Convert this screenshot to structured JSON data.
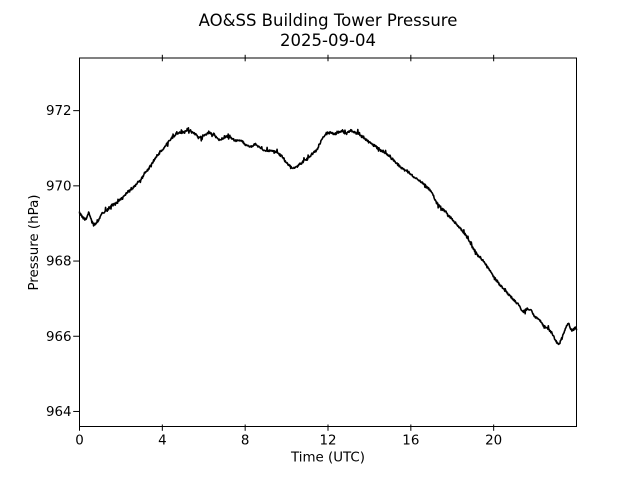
{
  "title": {
    "line1": "AO&SS Building Tower Pressure",
    "line2": "2025-09-04"
  },
  "axes": {
    "xlabel": "Time (UTC)",
    "ylabel": "Pressure (hPa)",
    "xticks": [
      0,
      4,
      8,
      12,
      16,
      20
    ],
    "yticks": [
      964,
      966,
      968,
      970,
      972
    ],
    "xlim": [
      0,
      24
    ],
    "ylim": [
      963.6,
      973.4
    ],
    "grid": false,
    "frame_color": "#000000",
    "background_color": "#ffffff"
  },
  "chart_data": {
    "type": "line",
    "title": "AO&SS Building Tower Pressure",
    "subtitle": "2025-09-04",
    "xlabel": "Time (UTC)",
    "ylabel": "Pressure (hPa)",
    "xlim": [
      0,
      24
    ],
    "ylim": [
      963.6,
      973.4
    ],
    "legend": "none",
    "grid": false,
    "line_color": "#000000",
    "noise_hpa": 0.05,
    "series_name": "tower_pressure_hpa",
    "points": [
      [
        0.0,
        969.3
      ],
      [
        0.15,
        969.15
      ],
      [
        0.3,
        969.1
      ],
      [
        0.45,
        969.3
      ],
      [
        0.6,
        969.05
      ],
      [
        0.75,
        968.98
      ],
      [
        0.9,
        969.05
      ],
      [
        1.05,
        969.25
      ],
      [
        1.2,
        969.3
      ],
      [
        1.4,
        969.4
      ],
      [
        1.6,
        969.5
      ],
      [
        1.8,
        969.55
      ],
      [
        2.0,
        969.65
      ],
      [
        2.25,
        969.78
      ],
      [
        2.5,
        969.9
      ],
      [
        2.75,
        970.05
      ],
      [
        3.0,
        970.2
      ],
      [
        3.25,
        970.4
      ],
      [
        3.5,
        970.6
      ],
      [
        3.75,
        970.8
      ],
      [
        4.0,
        970.95
      ],
      [
        4.25,
        971.15
      ],
      [
        4.5,
        971.3
      ],
      [
        4.75,
        971.4
      ],
      [
        5.0,
        971.42
      ],
      [
        5.25,
        971.48
      ],
      [
        5.5,
        971.42
      ],
      [
        5.75,
        971.28
      ],
      [
        6.0,
        971.33
      ],
      [
        6.25,
        971.42
      ],
      [
        6.5,
        971.35
      ],
      [
        6.75,
        971.22
      ],
      [
        7.0,
        971.28
      ],
      [
        7.25,
        971.32
      ],
      [
        7.5,
        971.2
      ],
      [
        7.75,
        971.22
      ],
      [
        8.0,
        971.1
      ],
      [
        8.25,
        971.05
      ],
      [
        8.5,
        971.1
      ],
      [
        8.75,
        971.0
      ],
      [
        9.0,
        970.92
      ],
      [
        9.25,
        970.95
      ],
      [
        9.5,
        970.9
      ],
      [
        9.75,
        970.8
      ],
      [
        10.0,
        970.62
      ],
      [
        10.2,
        970.5
      ],
      [
        10.35,
        970.45
      ],
      [
        10.5,
        970.52
      ],
      [
        10.75,
        970.62
      ],
      [
        11.0,
        970.72
      ],
      [
        11.25,
        970.85
      ],
      [
        11.5,
        971.0
      ],
      [
        11.75,
        971.28
      ],
      [
        11.9,
        971.38
      ],
      [
        12.1,
        971.42
      ],
      [
        12.3,
        971.38
      ],
      [
        12.5,
        971.42
      ],
      [
        12.7,
        971.45
      ],
      [
        12.9,
        971.4
      ],
      [
        13.1,
        971.47
      ],
      [
        13.3,
        971.42
      ],
      [
        13.5,
        971.38
      ],
      [
        13.7,
        971.28
      ],
      [
        13.9,
        971.2
      ],
      [
        14.1,
        971.12
      ],
      [
        14.3,
        971.05
      ],
      [
        14.5,
        970.95
      ],
      [
        14.75,
        970.88
      ],
      [
        15.0,
        970.78
      ],
      [
        15.25,
        970.62
      ],
      [
        15.5,
        970.5
      ],
      [
        15.75,
        970.42
      ],
      [
        16.0,
        970.3
      ],
      [
        16.25,
        970.2
      ],
      [
        16.5,
        970.1
      ],
      [
        16.75,
        969.98
      ],
      [
        17.0,
        969.85
      ],
      [
        17.2,
        969.6
      ],
      [
        17.4,
        969.45
      ],
      [
        17.6,
        969.35
      ],
      [
        17.8,
        969.22
      ],
      [
        18.0,
        969.1
      ],
      [
        18.25,
        968.95
      ],
      [
        18.5,
        968.8
      ],
      [
        18.75,
        968.6
      ],
      [
        19.0,
        968.35
      ],
      [
        19.25,
        968.15
      ],
      [
        19.5,
        968.0
      ],
      [
        19.75,
        967.8
      ],
      [
        20.0,
        967.6
      ],
      [
        20.25,
        967.4
      ],
      [
        20.5,
        967.25
      ],
      [
        20.75,
        967.1
      ],
      [
        21.0,
        966.95
      ],
      [
        21.2,
        966.85
      ],
      [
        21.4,
        966.65
      ],
      [
        21.6,
        966.72
      ],
      [
        21.8,
        966.7
      ],
      [
        22.0,
        966.5
      ],
      [
        22.2,
        966.45
      ],
      [
        22.4,
        966.3
      ],
      [
        22.6,
        966.2
      ],
      [
        22.8,
        966.1
      ],
      [
        23.0,
        965.88
      ],
      [
        23.15,
        965.78
      ],
      [
        23.3,
        965.95
      ],
      [
        23.45,
        966.2
      ],
      [
        23.6,
        966.35
      ],
      [
        23.75,
        966.15
      ],
      [
        23.9,
        966.2
      ],
      [
        24.0,
        966.25
      ]
    ]
  }
}
